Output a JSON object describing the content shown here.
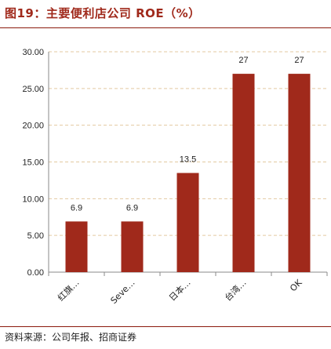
{
  "figure": {
    "title": "图19：主要便利店公司 ROE（%）",
    "source": "资料来源：公司年报、招商证券"
  },
  "colors": {
    "bar": "#a0291b",
    "accent": "#8b1a0e",
    "grid": "#e3c9a0"
  },
  "chart_data": {
    "type": "bar",
    "categories": [
      "红旗…",
      "Seve…",
      "日本…",
      "台湾…",
      "OK"
    ],
    "values": [
      6.9,
      6.9,
      13.5,
      27,
      27
    ],
    "data_labels": [
      "6.9",
      "6.9",
      "13.5",
      "27",
      "27"
    ],
    "y_ticks": [
      "0.00",
      "5.00",
      "10.00",
      "15.00",
      "20.00",
      "25.00",
      "30.00"
    ],
    "ylim": [
      0,
      30
    ],
    "grid": true,
    "legend": "none"
  }
}
